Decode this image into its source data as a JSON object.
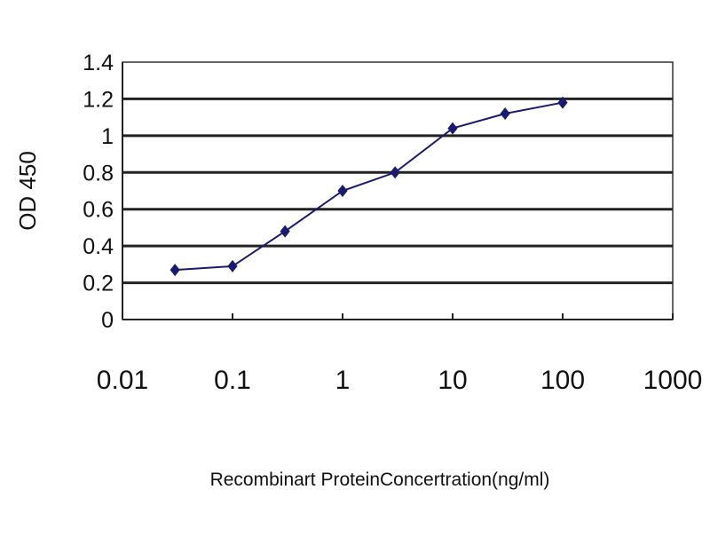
{
  "chart_data": {
    "type": "line",
    "title": "",
    "xlabel": "Recombinart ProteinConcertration(ng/ml)",
    "ylabel": "OD 450",
    "xscale": "log",
    "xlim": [
      0.01,
      1000
    ],
    "ylim": [
      0,
      1.4
    ],
    "xticks": [
      "0.01",
      "0.1",
      "1",
      "10",
      "100",
      "1000"
    ],
    "yticks": [
      "0",
      "0.2",
      "0.4",
      "0.6",
      "0.8",
      "1",
      "1.2",
      "1.4"
    ],
    "grid": "horizontal",
    "legend": "none",
    "series": [
      {
        "color": "#1a1a6e",
        "marker": "diamond",
        "x": [
          0.03,
          0.1,
          0.3,
          1,
          3,
          10,
          30,
          100
        ],
        "y": [
          0.27,
          0.29,
          0.48,
          0.7,
          0.8,
          1.04,
          1.12,
          1.18
        ]
      }
    ]
  }
}
